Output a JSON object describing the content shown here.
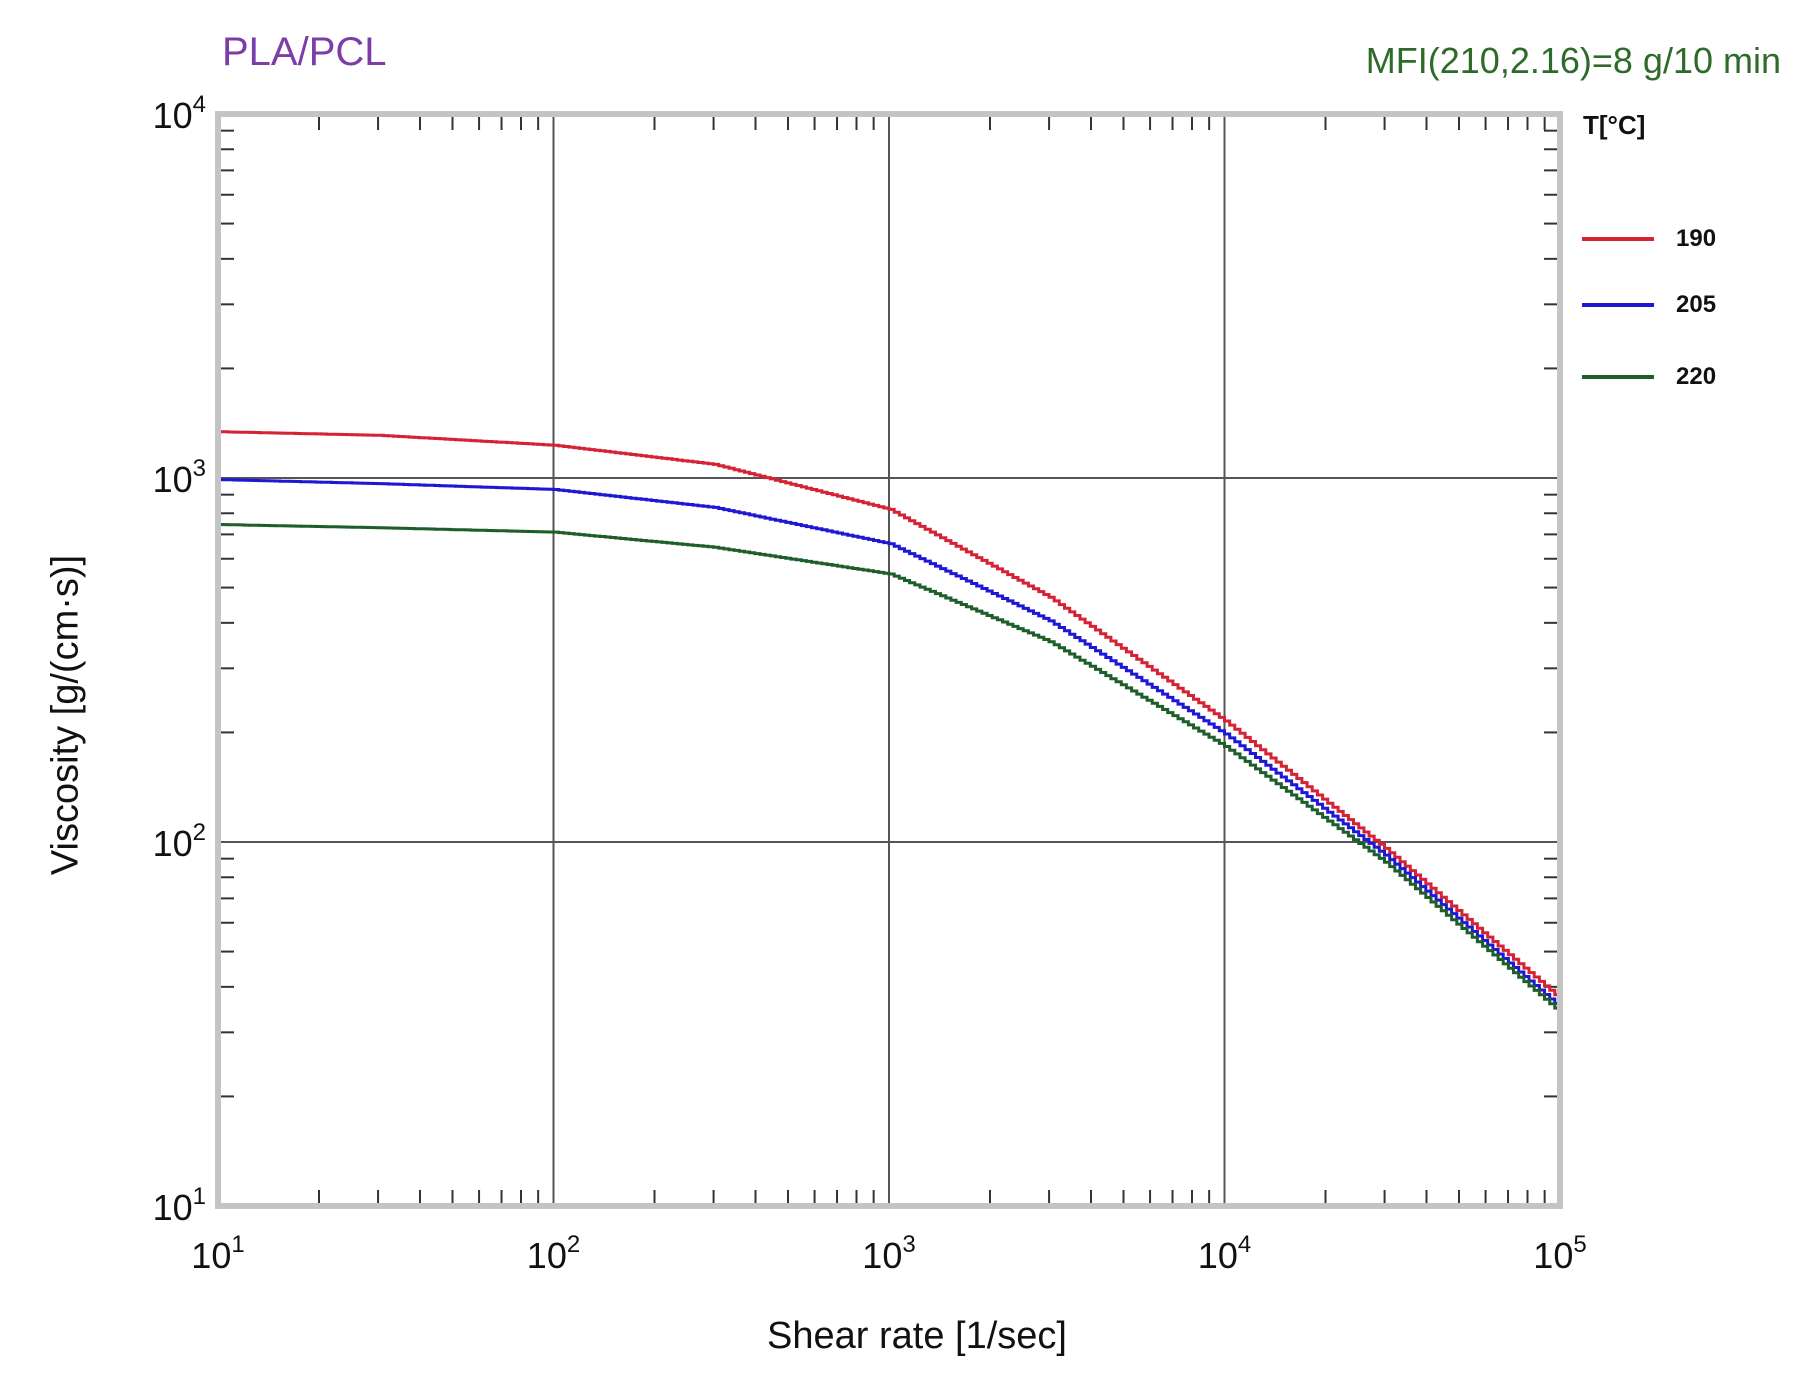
{
  "chart_data": {
    "type": "line",
    "title_left": "PLA/PCL",
    "title_right": "MFI(210,2.16)=8 g/10 min",
    "xlabel": "Shear rate [1/sec]",
    "ylabel": "Viscosity [g/(cm·s)]",
    "xscale": "log",
    "yscale": "log",
    "xlim": [
      10,
      100000
    ],
    "ylim": [
      10,
      10000
    ],
    "x_ticks": [
      {
        "base": "10",
        "exp": "1"
      },
      {
        "base": "10",
        "exp": "2"
      },
      {
        "base": "10",
        "exp": "3"
      },
      {
        "base": "10",
        "exp": "4"
      },
      {
        "base": "10",
        "exp": "5"
      }
    ],
    "y_ticks": [
      {
        "base": "10",
        "exp": "1"
      },
      {
        "base": "10",
        "exp": "2"
      },
      {
        "base": "10",
        "exp": "3"
      },
      {
        "base": "10",
        "exp": "4"
      }
    ],
    "legend_title": "T[°C]",
    "legend_position": "right",
    "grid": true,
    "series": [
      {
        "name": "190",
        "color": "#d62235",
        "x": [
          10,
          30,
          100,
          300,
          1000,
          3000,
          10000,
          30000,
          100000
        ],
        "values": [
          1340,
          1310,
          1230,
          1090,
          820,
          470,
          215,
          96,
          37
        ]
      },
      {
        "name": "205",
        "color": "#1f17d6",
        "x": [
          10,
          30,
          100,
          300,
          1000,
          3000,
          10000,
          30000,
          100000
        ],
        "values": [
          990,
          965,
          930,
          830,
          660,
          405,
          198,
          92,
          35
        ]
      },
      {
        "name": "220",
        "color": "#1e5e2a",
        "x": [
          10,
          30,
          100,
          300,
          1000,
          3000,
          10000,
          30000,
          100000
        ],
        "values": [
          745,
          730,
          710,
          645,
          545,
          355,
          183,
          88,
          34
        ]
      }
    ]
  }
}
